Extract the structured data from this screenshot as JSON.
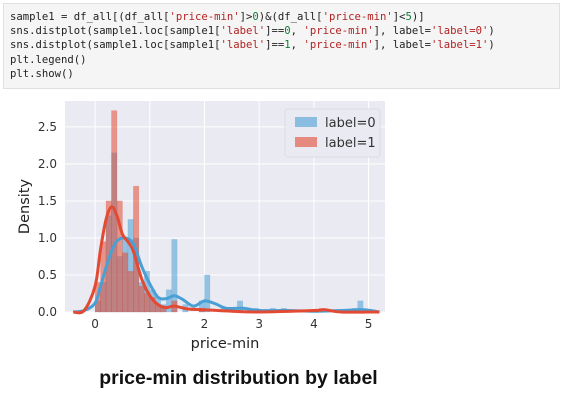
{
  "code": {
    "lines": [
      [
        {
          "t": "sample1 = df_all[(df_all[",
          "c": ""
        },
        {
          "t": "'price-min'",
          "c": "str"
        },
        {
          "t": "]>",
          "c": ""
        },
        {
          "t": "0",
          "c": "num"
        },
        {
          "t": ")&(df_all[",
          "c": ""
        },
        {
          "t": "'price-min'",
          "c": "str"
        },
        {
          "t": "]<",
          "c": ""
        },
        {
          "t": "5",
          "c": "num"
        },
        {
          "t": ")]",
          "c": ""
        }
      ],
      [
        {
          "t": "sns.distplot(sample1.loc[sample1[",
          "c": ""
        },
        {
          "t": "'label'",
          "c": "str"
        },
        {
          "t": "]==",
          "c": ""
        },
        {
          "t": "0",
          "c": "num"
        },
        {
          "t": ", ",
          "c": ""
        },
        {
          "t": "'price-min'",
          "c": "str"
        },
        {
          "t": "], label=",
          "c": ""
        },
        {
          "t": "'label=0'",
          "c": "str"
        },
        {
          "t": ")",
          "c": ""
        }
      ],
      [
        {
          "t": "sns.distplot(sample1.loc[sample1[",
          "c": ""
        },
        {
          "t": "'label'",
          "c": "str"
        },
        {
          "t": "]==",
          "c": ""
        },
        {
          "t": "1",
          "c": "num"
        },
        {
          "t": ", ",
          "c": ""
        },
        {
          "t": "'price-min'",
          "c": "str"
        },
        {
          "t": "], label=",
          "c": ""
        },
        {
          "t": "'label=1'",
          "c": "str"
        },
        {
          "t": ")",
          "c": ""
        }
      ],
      [
        {
          "t": "plt.legend()",
          "c": ""
        }
      ],
      [
        {
          "t": "plt.show()",
          "c": ""
        }
      ]
    ]
  },
  "caption": "price-min distribution by label",
  "colors": {
    "label0": "#4a9fd4",
    "label1": "#e24a33",
    "panel_bg": "#eaeaf2"
  },
  "chart_data": {
    "type": "bar",
    "xlabel": "price-min",
    "ylabel": "Density",
    "xlim": [
      -0.55,
      5.3
    ],
    "ylim": [
      0,
      2.85
    ],
    "xticks": [
      "0",
      "1",
      "2",
      "3",
      "4",
      "5"
    ],
    "yticks": [
      "0.0",
      "0.5",
      "1.0",
      "1.5",
      "2.0",
      "2.5"
    ],
    "grid": true,
    "legend_position": "top-right",
    "bin_width": 0.1,
    "series": [
      {
        "name": "label=0",
        "color": "#4a9fd4",
        "hist": [
          [
            0.05,
            0.15
          ],
          [
            0.15,
            0.4
          ],
          [
            0.25,
            1.3
          ],
          [
            0.35,
            2.15
          ],
          [
            0.45,
            0.75
          ],
          [
            0.55,
            1.0
          ],
          [
            0.65,
            1.25
          ],
          [
            0.75,
            1.0
          ],
          [
            0.85,
            0.4
          ],
          [
            0.95,
            0.55
          ],
          [
            1.05,
            0.3
          ],
          [
            1.15,
            0.2
          ],
          [
            1.25,
            0.1
          ],
          [
            1.35,
            0.3
          ],
          [
            1.45,
            0.98
          ],
          [
            1.65,
            0.1
          ],
          [
            1.95,
            0.15
          ],
          [
            2.05,
            0.5
          ],
          [
            2.35,
            0.05
          ],
          [
            2.65,
            0.15
          ],
          [
            2.95,
            0.05
          ],
          [
            3.25,
            0.05
          ],
          [
            3.45,
            0.05
          ],
          [
            4.75,
            0.05
          ],
          [
            4.85,
            0.15
          ]
        ],
        "kde": [
          [
            -0.4,
            0.0
          ],
          [
            -0.2,
            0.02
          ],
          [
            0.0,
            0.12
          ],
          [
            0.1,
            0.35
          ],
          [
            0.2,
            0.6
          ],
          [
            0.3,
            0.82
          ],
          [
            0.4,
            0.96
          ],
          [
            0.55,
            1.0
          ],
          [
            0.7,
            0.92
          ],
          [
            0.85,
            0.62
          ],
          [
            1.0,
            0.38
          ],
          [
            1.15,
            0.2
          ],
          [
            1.3,
            0.18
          ],
          [
            1.45,
            0.22
          ],
          [
            1.6,
            0.17
          ],
          [
            1.8,
            0.08
          ],
          [
            2.0,
            0.15
          ],
          [
            2.2,
            0.11
          ],
          [
            2.4,
            0.05
          ],
          [
            2.7,
            0.05
          ],
          [
            3.0,
            0.02
          ],
          [
            3.5,
            0.02
          ],
          [
            4.0,
            0.01
          ],
          [
            4.5,
            0.02
          ],
          [
            4.9,
            0.03
          ],
          [
            5.2,
            0.0
          ]
        ]
      },
      {
        "name": "label=1",
        "color": "#e24a33",
        "hist": [
          [
            0.05,
            0.4
          ],
          [
            0.15,
            0.95
          ],
          [
            0.25,
            1.5
          ],
          [
            0.35,
            2.72
          ],
          [
            0.45,
            1.5
          ],
          [
            0.55,
            0.8
          ],
          [
            0.65,
            0.55
          ],
          [
            0.75,
            1.7
          ],
          [
            0.85,
            0.35
          ],
          [
            0.95,
            0.25
          ],
          [
            1.05,
            0.2
          ],
          [
            1.15,
            0.1
          ],
          [
            1.25,
            0.05
          ],
          [
            1.45,
            0.15
          ],
          [
            1.95,
            0.05
          ],
          [
            4.15,
            0.05
          ]
        ],
        "kde": [
          [
            -0.4,
            0.0
          ],
          [
            -0.2,
            0.02
          ],
          [
            0.0,
            0.35
          ],
          [
            0.1,
            0.85
          ],
          [
            0.2,
            1.25
          ],
          [
            0.3,
            1.42
          ],
          [
            0.4,
            1.3
          ],
          [
            0.5,
            1.05
          ],
          [
            0.6,
            0.95
          ],
          [
            0.7,
            0.82
          ],
          [
            0.85,
            0.45
          ],
          [
            1.0,
            0.22
          ],
          [
            1.15,
            0.1
          ],
          [
            1.3,
            0.06
          ],
          [
            1.45,
            0.08
          ],
          [
            1.7,
            0.04
          ],
          [
            2.0,
            0.03
          ],
          [
            2.5,
            0.01
          ],
          [
            3.0,
            0.0
          ],
          [
            4.0,
            0.02
          ],
          [
            4.2,
            0.03
          ],
          [
            4.5,
            0.0
          ],
          [
            5.2,
            0.0
          ]
        ]
      }
    ]
  }
}
